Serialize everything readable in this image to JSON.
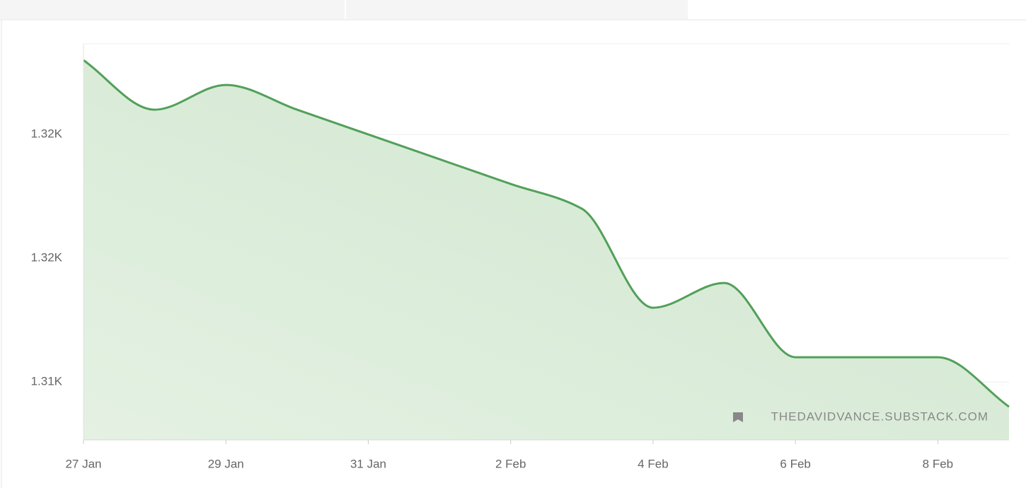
{
  "chart_data": {
    "type": "area",
    "categories": [
      "27 Jan",
      null,
      "29 Jan",
      null,
      "31 Jan",
      null,
      "2 Feb",
      null,
      "4 Feb",
      null,
      "6 Feb",
      null,
      "8 Feb",
      null
    ],
    "series": [
      {
        "color": "#52a05a",
        "values": [
          1323,
          1321,
          1322,
          1321,
          1320,
          1319,
          1318,
          1317,
          1313,
          1314,
          1311,
          1311,
          1311,
          1309
        ]
      }
    ],
    "ylim": [
      1307.66,
      1323.66
    ],
    "yticks": [
      {
        "value": 1310,
        "label": "1.31K"
      },
      {
        "value": 1315,
        "label": "1.32K"
      },
      {
        "value": 1320,
        "label": "1.32K"
      }
    ],
    "grid": true,
    "watermark": "THEDAVIDVANCE.SUBSTACK.COM"
  }
}
